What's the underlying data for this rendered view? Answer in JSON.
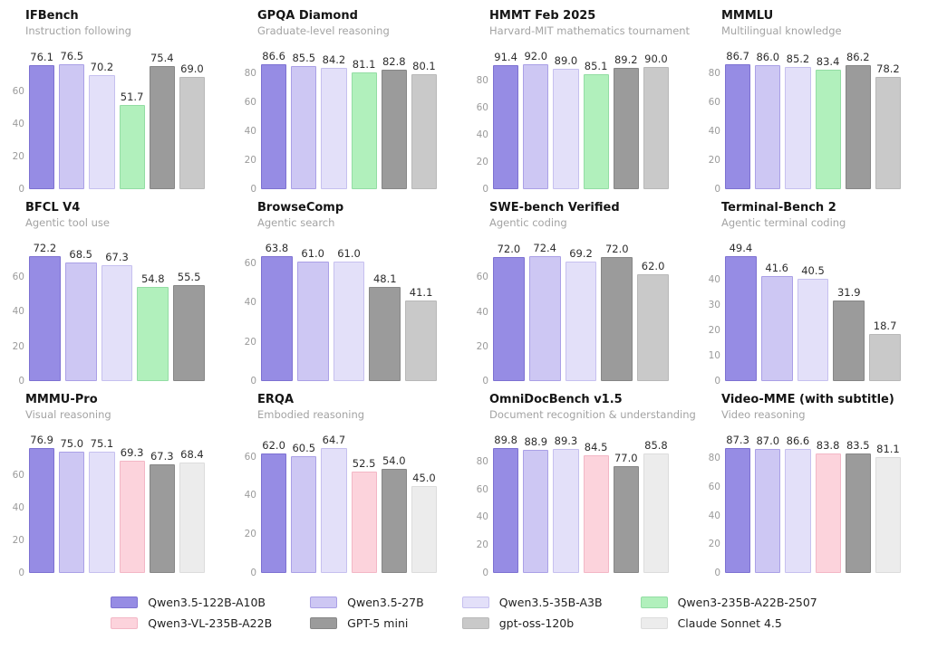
{
  "page": {
    "background": "#ffffff"
  },
  "legend": {
    "items": [
      {
        "label": "Qwen3.5-122B-A10B",
        "color": "#968ce4",
        "border": "#7d71d2"
      },
      {
        "label": "Qwen3.5-27B",
        "color": "#cdc7f3",
        "border": "#aaa0e6"
      },
      {
        "label": "Qwen3.5-35B-A3B",
        "color": "#e3e0f9",
        "border": "#c6c0ef"
      },
      {
        "label": "Qwen3-235B-A22B-2507",
        "color": "#b1f0bc",
        "border": "#93dda4"
      },
      {
        "label": "Qwen3-VL-235B-A22B",
        "color": "#fcd3dc",
        "border": "#f3b7c6"
      },
      {
        "label": "GPT-5 mini",
        "color": "#9b9b9b",
        "border": "#868686"
      },
      {
        "label": "gpt-oss-120b",
        "color": "#c9c9c9",
        "border": "#b8b8b8"
      },
      {
        "label": "Claude Sonnet 4.5",
        "color": "#ececec",
        "border": "#dcdcdc"
      }
    ]
  },
  "chart_data": [
    {
      "type": "bar",
      "title": "IFBench",
      "subtitle": "Instruction following",
      "yticks": [
        0,
        20,
        40,
        60
      ],
      "categories": [
        "Qwen3.5-122B-A10B",
        "Qwen3.5-27B",
        "Qwen3.5-35B-A3B",
        "Qwen3-235B-A22B-2507",
        "GPT-5 mini",
        "gpt-oss-120b"
      ],
      "values": [
        76.1,
        76.5,
        70.2,
        51.7,
        75.4,
        69.0
      ],
      "labels": [
        "76.1",
        "76.5",
        "70.2",
        "51.7",
        "75.4",
        "69.0"
      ]
    },
    {
      "type": "bar",
      "title": "GPQA Diamond",
      "subtitle": "Graduate-level reasoning",
      "yticks": [
        0,
        20,
        40,
        60,
        80
      ],
      "categories": [
        "Qwen3.5-122B-A10B",
        "Qwen3.5-27B",
        "Qwen3.5-35B-A3B",
        "Qwen3-235B-A22B-2507",
        "GPT-5 mini",
        "gpt-oss-120b"
      ],
      "values": [
        86.6,
        85.5,
        84.2,
        81.1,
        82.8,
        80.1
      ],
      "labels": [
        "86.6",
        "85.5",
        "84.2",
        "81.1",
        "82.8",
        "80.1"
      ]
    },
    {
      "type": "bar",
      "title": "HMMT Feb 2025",
      "subtitle": "Harvard-MIT mathematics tournament",
      "yticks": [
        0,
        20,
        40,
        60,
        80
      ],
      "categories": [
        "Qwen3.5-122B-A10B",
        "Qwen3.5-27B",
        "Qwen3.5-35B-A3B",
        "Qwen3-235B-A22B-2507",
        "GPT-5 mini",
        "gpt-oss-120b"
      ],
      "values": [
        91.4,
        92.0,
        89.0,
        85.1,
        89.2,
        90.0
      ],
      "labels": [
        "91.4",
        "92.0",
        "89.0",
        "85.1",
        "89.2",
        "90.0"
      ]
    },
    {
      "type": "bar",
      "title": "MMMLU",
      "subtitle": "Multilingual knowledge",
      "yticks": [
        0,
        20,
        40,
        60,
        80
      ],
      "categories": [
        "Qwen3.5-122B-A10B",
        "Qwen3.5-27B",
        "Qwen3.5-35B-A3B",
        "Qwen3-235B-A22B-2507",
        "GPT-5 mini",
        "gpt-oss-120b"
      ],
      "values": [
        86.7,
        86.0,
        85.2,
        83.4,
        86.2,
        78.2
      ],
      "labels": [
        "86.7",
        "86.0",
        "85.2",
        "83.4",
        "86.2",
        "78.2"
      ]
    },
    {
      "type": "bar",
      "title": "BFCL V4",
      "subtitle": "Agentic tool use",
      "yticks": [
        0,
        20,
        40,
        60
      ],
      "categories": [
        "Qwen3.5-122B-A10B",
        "Qwen3.5-27B",
        "Qwen3.5-35B-A3B",
        "Qwen3-235B-A22B-2507",
        "GPT-5 mini"
      ],
      "values": [
        72.2,
        68.5,
        67.3,
        54.8,
        55.5
      ],
      "labels": [
        "72.2",
        "68.5",
        "67.3",
        "54.8",
        "55.5"
      ]
    },
    {
      "type": "bar",
      "title": "BrowseComp",
      "subtitle": "Agentic search",
      "yticks": [
        0,
        20,
        40,
        60
      ],
      "categories": [
        "Qwen3.5-122B-A10B",
        "Qwen3.5-27B",
        "Qwen3.5-35B-A3B",
        "GPT-5 mini",
        "gpt-oss-120b"
      ],
      "values": [
        63.8,
        61.0,
        61.0,
        48.1,
        41.1
      ],
      "labels": [
        "63.8",
        "61.0",
        "61.0",
        "48.1",
        "41.1"
      ]
    },
    {
      "type": "bar",
      "title": "SWE-bench Verified",
      "subtitle": "Agentic coding",
      "yticks": [
        0,
        20,
        40,
        60
      ],
      "categories": [
        "Qwen3.5-122B-A10B",
        "Qwen3.5-27B",
        "Qwen3.5-35B-A3B",
        "GPT-5 mini",
        "gpt-oss-120b"
      ],
      "values": [
        72.0,
        72.4,
        69.2,
        72.0,
        62.0
      ],
      "labels": [
        "72.0",
        "72.4",
        "69.2",
        "72.0",
        "62.0"
      ]
    },
    {
      "type": "bar",
      "title": "Terminal-Bench 2",
      "subtitle": "Agentic terminal coding",
      "yticks": [
        0,
        10,
        20,
        30,
        40
      ],
      "categories": [
        "Qwen3.5-122B-A10B",
        "Qwen3.5-27B",
        "Qwen3.5-35B-A3B",
        "GPT-5 mini",
        "gpt-oss-120b"
      ],
      "values": [
        49.4,
        41.6,
        40.5,
        31.9,
        18.7
      ],
      "labels": [
        "49.4",
        "41.6",
        "40.5",
        "31.9",
        "18.7"
      ]
    },
    {
      "type": "bar",
      "title": "MMMU-Pro",
      "subtitle": "Visual reasoning",
      "yticks": [
        0,
        20,
        40,
        60
      ],
      "categories": [
        "Qwen3.5-122B-A10B",
        "Qwen3.5-27B",
        "Qwen3.5-35B-A3B",
        "Qwen3-VL-235B-A22B",
        "GPT-5 mini",
        "Claude Sonnet 4.5"
      ],
      "values": [
        76.9,
        75.0,
        75.1,
        69.3,
        67.3,
        68.4
      ],
      "labels": [
        "76.9",
        "75.0",
        "75.1",
        "69.3",
        "67.3",
        "68.4"
      ]
    },
    {
      "type": "bar",
      "title": "ERQA",
      "subtitle": "Embodied reasoning",
      "yticks": [
        0,
        20,
        40,
        60
      ],
      "categories": [
        "Qwen3.5-122B-A10B",
        "Qwen3.5-27B",
        "Qwen3.5-35B-A3B",
        "Qwen3-VL-235B-A22B",
        "GPT-5 mini",
        "Claude Sonnet 4.5"
      ],
      "values": [
        62.0,
        60.5,
        64.7,
        52.5,
        54.0,
        45.0
      ],
      "labels": [
        "62.0",
        "60.5",
        "64.7",
        "52.5",
        "54.0",
        "45.0"
      ]
    },
    {
      "type": "bar",
      "title": "OmniDocBench v1.5",
      "subtitle": "Document recognition & understanding",
      "yticks": [
        0,
        20,
        40,
        60,
        80
      ],
      "categories": [
        "Qwen3.5-122B-A10B",
        "Qwen3.5-27B",
        "Qwen3.5-35B-A3B",
        "Qwen3-VL-235B-A22B",
        "GPT-5 mini",
        "Claude Sonnet 4.5"
      ],
      "values": [
        89.8,
        88.9,
        89.3,
        84.5,
        77.0,
        85.8
      ],
      "labels": [
        "89.8",
        "88.9",
        "89.3",
        "84.5",
        "77.0",
        "85.8"
      ]
    },
    {
      "type": "bar",
      "title": "Video-MME (with subtitle)",
      "subtitle": "Video reasoning",
      "yticks": [
        0,
        20,
        40,
        60,
        80
      ],
      "categories": [
        "Qwen3.5-122B-A10B",
        "Qwen3.5-27B",
        "Qwen3.5-35B-A3B",
        "Qwen3-VL-235B-A22B",
        "GPT-5 mini",
        "Claude Sonnet 4.5"
      ],
      "values": [
        87.3,
        87.0,
        86.6,
        83.8,
        83.5,
        81.1
      ],
      "labels": [
        "87.3",
        "87.0",
        "86.6",
        "83.8",
        "83.5",
        "81.1"
      ]
    }
  ]
}
